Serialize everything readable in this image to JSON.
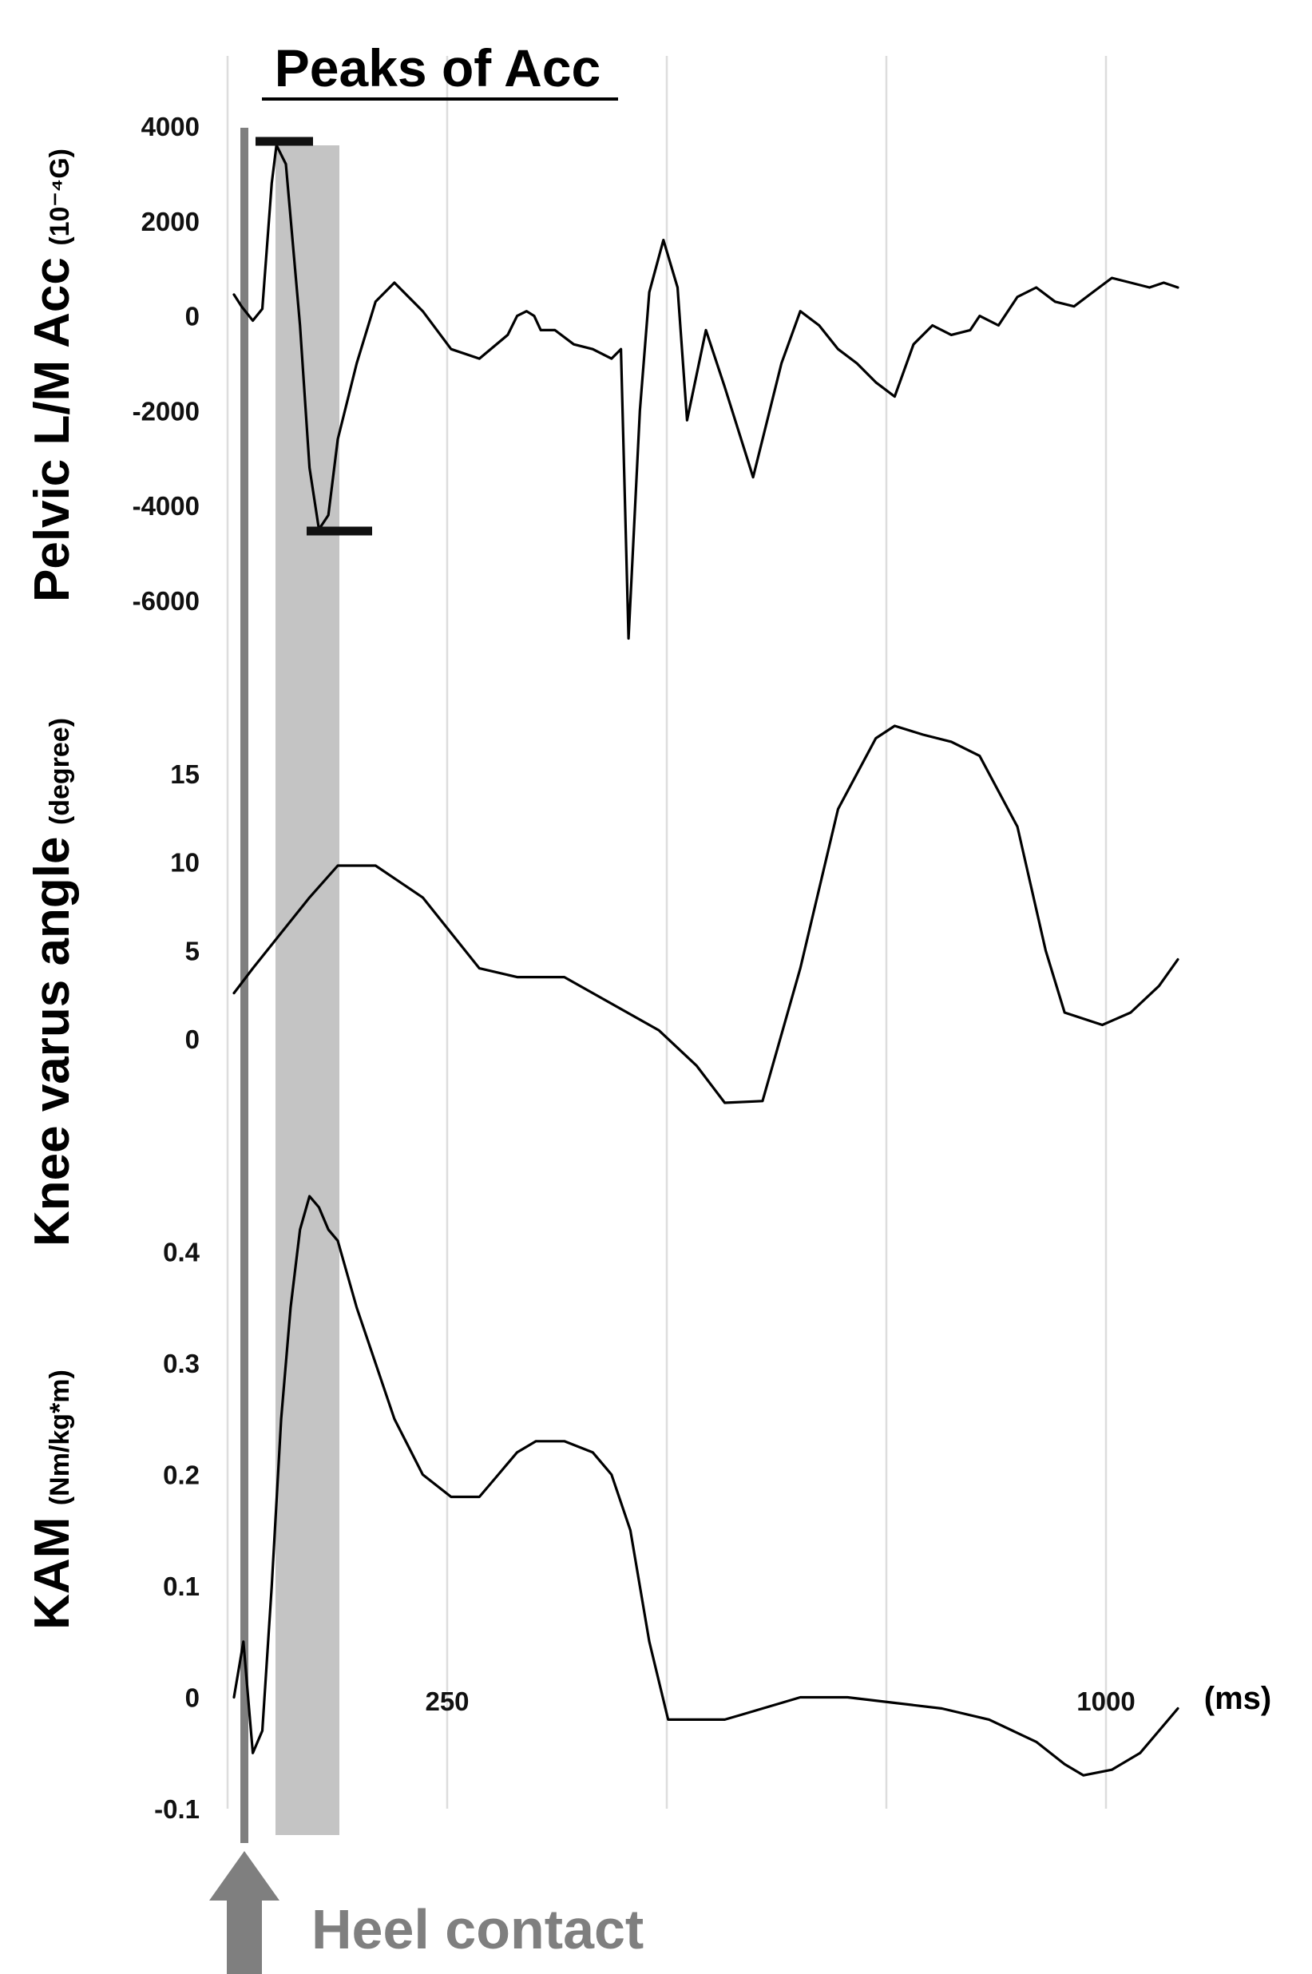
{
  "colors": {
    "line": "#000000",
    "gridline": "#dddddd",
    "shaded_band": "#c4c4c4",
    "heel_marker": "#7f7f7f",
    "heel_text": "#7f7f7f"
  },
  "chart_data": [
    {
      "panel": "pelvic_acc",
      "type": "line",
      "title": "Peaks of Acc",
      "ylabel": "Pelvic L/M Acc",
      "ylabel_unit": "(10⁻⁴G)",
      "yticks": [
        "4000",
        "2000",
        "0",
        "-2000",
        "-4000",
        "-6000"
      ],
      "ylim": [
        -6000,
        4000
      ],
      "x": [
        0,
        8,
        20,
        30,
        40,
        45,
        55,
        70,
        80,
        90,
        100,
        110,
        130,
        150,
        170,
        200,
        230,
        260,
        290,
        300,
        310,
        318,
        325,
        340,
        360,
        380,
        400,
        410,
        418,
        430,
        440,
        455,
        470,
        480,
        500,
        520,
        550,
        580,
        600,
        620,
        640,
        660,
        680,
        700,
        720,
        740,
        760,
        780,
        790,
        810,
        830,
        850,
        870,
        890,
        910,
        930,
        950,
        970,
        985,
        1000
      ],
      "values": [
        450,
        200,
        -100,
        150,
        2800,
        3600,
        3200,
        -200,
        -3200,
        -4500,
        -4200,
        -2600,
        -1000,
        300,
        700,
        100,
        -700,
        -900,
        -400,
        0,
        100,
        0,
        -300,
        -300,
        -600,
        -700,
        -900,
        -700,
        -6800,
        -2000,
        500,
        1600,
        600,
        -2200,
        -300,
        -1500,
        -3400,
        -1000,
        100,
        -200,
        -700,
        -1000,
        -1400,
        -1700,
        -600,
        -200,
        -400,
        -300,
        0,
        -200,
        400,
        600,
        300,
        200,
        500,
        800,
        700,
        600,
        700,
        600
      ],
      "annotations": [
        "peak marker at max",
        "peak marker at min"
      ]
    },
    {
      "panel": "knee_varus",
      "type": "line",
      "ylabel": "Knee varus angle",
      "ylabel_unit": "(degree)",
      "yticks": [
        "15",
        "10",
        "5",
        "0"
      ],
      "ylim": [
        -5,
        20
      ],
      "x": [
        0,
        20,
        50,
        80,
        110,
        150,
        200,
        260,
        300,
        350,
        400,
        450,
        490,
        520,
        560,
        600,
        640,
        680,
        700,
        730,
        760,
        790,
        830,
        860,
        880,
        920,
        950,
        980,
        1000
      ],
      "values": [
        2.6,
        4.0,
        6.0,
        8.0,
        9.8,
        9.8,
        8.0,
        4.0,
        3.5,
        3.5,
        2.0,
        0.5,
        -1.5,
        -3.6,
        -3.5,
        4.0,
        13.0,
        17.0,
        17.7,
        17.2,
        16.8,
        16.0,
        12.0,
        5.0,
        1.5,
        0.8,
        1.5,
        3.0,
        4.5
      ],
      "annotations": []
    },
    {
      "panel": "kam",
      "type": "line",
      "ylabel": "KAM",
      "ylabel_unit": "(Nm/kg*m)",
      "yticks": [
        "0.4",
        "0.3",
        "0.2",
        "0.1",
        "0",
        "-0.1"
      ],
      "ylim": [
        -0.1,
        0.45
      ],
      "x_tick_labels": [
        "250",
        "1000"
      ],
      "x_unit": "(ms)",
      "x": [
        0,
        10,
        20,
        30,
        40,
        50,
        60,
        70,
        80,
        90,
        100,
        110,
        130,
        150,
        170,
        200,
        230,
        260,
        280,
        300,
        320,
        350,
        380,
        400,
        420,
        440,
        460,
        480,
        500,
        520,
        540,
        560,
        580,
        600,
        650,
        700,
        750,
        800,
        850,
        880,
        900,
        930,
        960,
        980,
        1000
      ],
      "values": [
        0.0,
        0.05,
        -0.05,
        -0.03,
        0.1,
        0.25,
        0.35,
        0.42,
        0.45,
        0.44,
        0.42,
        0.41,
        0.35,
        0.3,
        0.25,
        0.2,
        0.18,
        0.18,
        0.2,
        0.22,
        0.23,
        0.23,
        0.22,
        0.2,
        0.15,
        0.05,
        -0.02,
        -0.02,
        -0.02,
        -0.02,
        -0.015,
        -0.01,
        -0.005,
        0.0,
        0.0,
        -0.005,
        -0.01,
        -0.02,
        -0.04,
        -0.06,
        -0.07,
        -0.065,
        -0.05,
        -0.03,
        -0.01
      ],
      "annotations": []
    }
  ],
  "heel_contact": {
    "label": "Heel contact"
  }
}
